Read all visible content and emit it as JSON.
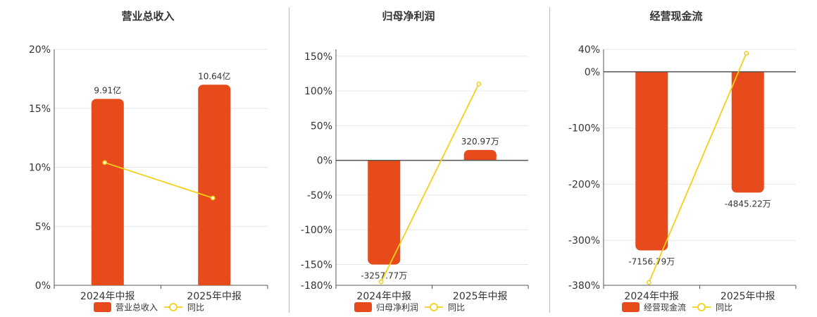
{
  "colors": {
    "bar": "#e84b1b",
    "line": "#f2d01b",
    "grid": "#e6e6e6",
    "axis": "#555555"
  },
  "legend_line_label": "同比",
  "chart_data": [
    {
      "type": "bar",
      "title": "营业总收入",
      "categories": [
        "2024年中报",
        "2025年中报"
      ],
      "series": [
        {
          "name": "营业总收入",
          "kind": "bar",
          "labels": [
            "9.91亿",
            "10.64亿"
          ],
          "values": [
            15.8,
            17.0
          ]
        },
        {
          "name": "同比",
          "kind": "line",
          "values": [
            10.4,
            7.4
          ]
        }
      ],
      "ylim": [
        0,
        20
      ],
      "yticks": [
        0,
        5,
        10,
        15,
        20
      ],
      "ytick_labels": [
        "0%",
        "5%",
        "10%",
        "15%",
        "20%"
      ],
      "grid": true,
      "legend": "bottom"
    },
    {
      "type": "bar",
      "title": "归母净利润",
      "categories": [
        "2024年中报",
        "2025年中报"
      ],
      "series": [
        {
          "name": "归母净利润",
          "kind": "bar",
          "labels": [
            "-3257.77万",
            "320.97万"
          ],
          "values": [
            -150,
            15
          ]
        },
        {
          "name": "同比",
          "kind": "line",
          "values": [
            -175,
            110
          ]
        }
      ],
      "ylim": [
        -180,
        160
      ],
      "yticks": [
        -180,
        -150,
        -100,
        -50,
        0,
        50,
        100,
        150
      ],
      "ytick_labels": [
        "-180%",
        "-150%",
        "-100%",
        "-50%",
        "0%",
        "50%",
        "100%",
        "150%"
      ],
      "grid": true,
      "legend": "bottom"
    },
    {
      "type": "bar",
      "title": "经营现金流",
      "categories": [
        "2024年中报",
        "2025年中报"
      ],
      "series": [
        {
          "name": "经营现金流",
          "kind": "bar",
          "labels": [
            "-7156.79万",
            "-4845.22万"
          ],
          "values": [
            -318,
            -215
          ]
        },
        {
          "name": "同比",
          "kind": "line",
          "values": [
            -375,
            33
          ]
        }
      ],
      "ylim": [
        -380,
        40
      ],
      "yticks": [
        -380,
        -300,
        -200,
        -100,
        0,
        40
      ],
      "ytick_labels": [
        "-380%",
        "-300%",
        "-200%",
        "-100%",
        "0%",
        "40%"
      ],
      "grid": true,
      "legend": "bottom"
    }
  ]
}
